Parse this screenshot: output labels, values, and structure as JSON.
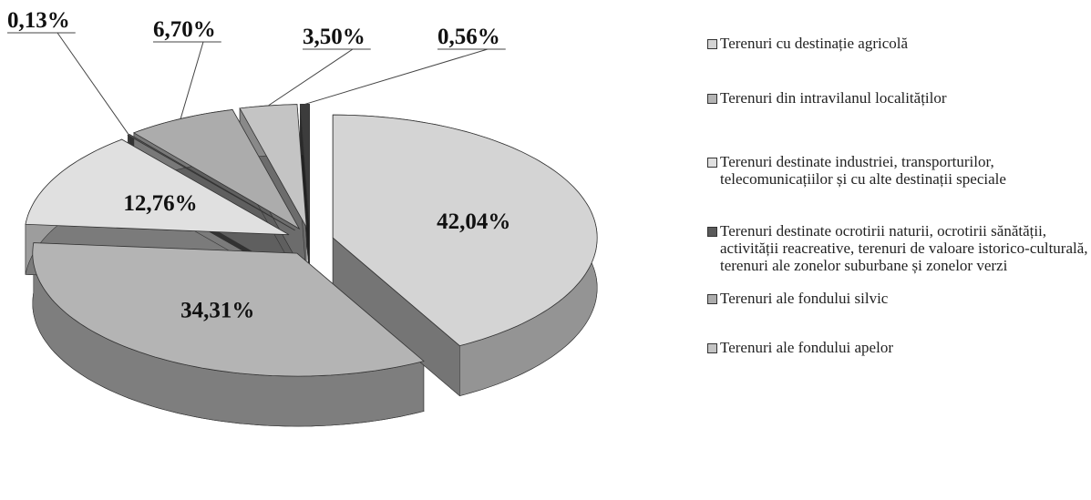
{
  "chart_data": {
    "type": "pie",
    "categories": [
      "Terenuri cu destinație agricolă",
      "Terenuri din intravilanul localităților",
      "Terenuri destinate industriei, transporturilor, telecomunicațiilor și cu alte destinații speciale",
      "Terenuri destinate ocrotirii naturii, ocrotirii sănătății, activității reacreative, terenuri de valoare istorico-culturală, terenuri ale zonelor suburbane și zonelor verzi",
      "Terenuri ale fondului silvic",
      "Terenuri ale fondului apelor",
      null
    ],
    "values": [
      42.04,
      34.31,
      12.76,
      0.13,
      6.7,
      3.5,
      0.56
    ],
    "value_labels": [
      "42,04%",
      "34,31%",
      "12,76%",
      "0,13%",
      "6,70%",
      "3,50%",
      "0,56%"
    ],
    "colors": [
      "#d4d4d4",
      "#b4b4b4",
      "#e0e0e0",
      "#5a5a5a",
      "#acacac",
      "#c4c4c4",
      "#3c3c3c"
    ],
    "legend": "right"
  }
}
